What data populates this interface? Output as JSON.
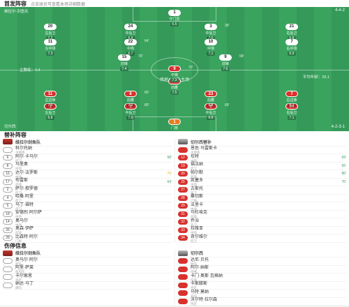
{
  "lineup": {
    "title": "首发阵容",
    "note": "点击球员可查看本场详细数据"
  },
  "home": {
    "name": "维拉尔-剑鱼队",
    "formation": "4-4-2",
    "coach_note": "主教练：4.4",
    "players": [
      {
        "num": "1",
        "name": "守门员",
        "rating": "6.5"
      },
      {
        "num": "20",
        "name": "左后卫",
        "rating": "7.2"
      },
      {
        "num": "24",
        "name": "中后卫",
        "rating": "6.9"
      },
      {
        "num": "3",
        "name": "中后卫",
        "rating": "7.0",
        "event": "39'"
      },
      {
        "num": "21",
        "name": "右后卫",
        "rating": "6.8"
      },
      {
        "num": "11",
        "name": "左中场",
        "rating": "7.3"
      },
      {
        "num": "22",
        "name": "中场",
        "rating": "6.7",
        "event": "64'"
      },
      {
        "num": "10",
        "name": "中场",
        "rating": "7.1"
      },
      {
        "num": "7",
        "name": "右中场",
        "rating": "6.9"
      },
      {
        "num": "15",
        "name": "前锋",
        "rating": "7.4",
        "event": "70'"
      },
      {
        "num": "9",
        "name": "前锋",
        "rating": "7.6",
        "event": "58'"
      }
    ]
  },
  "away": {
    "name": "切尔西",
    "formation": "4-2-3-1",
    "coach_note": "平均年龄：26.1",
    "mid_label": "场地：主队主场",
    "players": [
      {
        "num": "1",
        "name": "门将",
        "rating": "6.6"
      },
      {
        "num": "3",
        "name": "左后卫",
        "rating": "6.8"
      },
      {
        "num": "5",
        "name": "中后卫",
        "rating": "7.0",
        "event": "80'"
      },
      {
        "num": "6",
        "name": "中后卫",
        "rating": "6.9",
        "event": "69'"
      },
      {
        "num": "24",
        "name": "右后卫",
        "rating": "7.1"
      },
      {
        "num": "8",
        "name": "后腰",
        "rating": "7.2",
        "event": "65'"
      },
      {
        "num": "23",
        "name": "后腰",
        "rating": "6.8"
      },
      {
        "num": "10",
        "name": "前腰",
        "rating": "7.5"
      },
      {
        "num": "11",
        "name": "左边锋",
        "rating": "7.0"
      },
      {
        "num": "7",
        "name": "右边锋",
        "rating": "6.7"
      },
      {
        "num": "9",
        "name": "中锋",
        "rating": "7.3",
        "event": "70'"
      }
    ]
  },
  "subs": {
    "title": "替补阵容",
    "home_team": "维拉尔剑鱼队",
    "away_team": "切尔西替补",
    "home": [
      {
        "num": "",
        "name": "科尔托纳",
        "pos": "主教练"
      },
      {
        "num": "6",
        "name": "阿尔·卡马尔",
        "pos": "后卫",
        "event": "58'"
      },
      {
        "num": "8",
        "name": "马里奥",
        "pos": "中场"
      },
      {
        "num": "16",
        "name": "达尔·法罗斯",
        "pos": "中场",
        "event": "70'",
        "warn": true
      },
      {
        "num": "17",
        "name": "布雷斯",
        "pos": "前锋",
        "event": "64'"
      },
      {
        "num": "2",
        "name": "萨尔·穆罗德",
        "pos": "后卫"
      },
      {
        "num": "4",
        "name": "哈桑·阿里",
        "pos": "后卫"
      },
      {
        "num": "5",
        "name": "马丁·福特",
        "pos": "后卫"
      },
      {
        "num": "18",
        "name": "安德烈·阿尔萨",
        "pos": "中场"
      },
      {
        "num": "14",
        "name": "奥马尔",
        "pos": "中场"
      },
      {
        "num": "26",
        "name": "奥森·伊萨",
        "pos": "前锋"
      },
      {
        "num": "28",
        "name": "比森特·阿尔",
        "pos": "门将"
      }
    ],
    "away": [
      {
        "num": "",
        "name": "恩佐·马雷斯卡",
        "pos": "主教练"
      },
      {
        "num": "12",
        "name": "坎特",
        "pos": "中场",
        "event": "69'"
      },
      {
        "num": "19",
        "name": "福法纳",
        "pos": "后卫",
        "event": "65'"
      },
      {
        "num": "20",
        "name": "帕尔默",
        "pos": "前锋",
        "event": "80'"
      },
      {
        "num": "25",
        "name": "凯塞多",
        "pos": "中场",
        "event": "70'"
      },
      {
        "num": "27",
        "name": "古斯托",
        "pos": "后卫"
      },
      {
        "num": "28",
        "name": "桑切斯",
        "pos": "门将"
      },
      {
        "num": "29",
        "name": "法里卡",
        "pos": "中场"
      },
      {
        "num": "31",
        "name": "马杜埃克",
        "pos": "前锋"
      },
      {
        "num": "32",
        "name": "乔治",
        "pos": "后卫"
      },
      {
        "num": "33",
        "name": "拉维亚",
        "pos": "中场"
      },
      {
        "num": "34",
        "name": "奇尔维尔",
        "pos": "后卫"
      }
    ]
  },
  "injuries": {
    "title": "伤停信息",
    "home_team": "维拉尔剑鱼队",
    "away_team": "切尔西",
    "home": [
      {
        "name": "奥马尔·阿尔",
        "pos": "膝伤"
      },
      {
        "name": "阿里·萨莱",
        "pos": "肌肉伤"
      },
      {
        "name": "卡尔索恩",
        "pos": "待定"
      },
      {
        "name": "纳达·马丁",
        "pos": "踝伤"
      }
    ],
    "away": [
      {
        "name": "达尼·贝托",
        "pos": "腿伤"
      },
      {
        "name": "阿尔·纳斯",
        "pos": "停赛"
      },
      {
        "name": "卡门·奥斯·瓦格纳",
        "pos": "伤病"
      },
      {
        "name": "卡斯滕斯",
        "pos": "待定"
      },
      {
        "name": "马特·莫纳",
        "pos": "背伤"
      },
      {
        "name": "沃尔特·拉尔森",
        "pos": "待定"
      }
    ]
  }
}
